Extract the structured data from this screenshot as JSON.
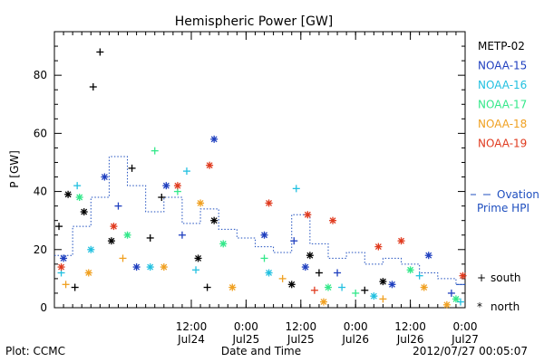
{
  "chart_data": {
    "type": "scatter",
    "title": "Hemispheric Power [GW]",
    "xlabel": "Date and Time",
    "ylabel": "P [GW]",
    "ylim": [
      0,
      95
    ],
    "xlim": [
      "2012-07-23T06:00",
      "2012-07-27T00:00"
    ],
    "yticks": [
      0,
      20,
      40,
      60,
      80
    ],
    "xticks": [
      {
        "time": "2012-07-24T12:00",
        "label1": "12:00",
        "label2": "Jul24"
      },
      {
        "time": "2012-07-25T00:00",
        "label1": "0:00",
        "label2": "Jul25"
      },
      {
        "time": "2012-07-25T12:00",
        "label1": "12:00",
        "label2": "Jul25"
      },
      {
        "time": "2012-07-26T00:00",
        "label1": "0:00",
        "label2": "Jul26"
      },
      {
        "time": "2012-07-26T12:00",
        "label1": "12:00",
        "label2": "Jul26"
      },
      {
        "time": "2012-07-27T00:00",
        "label1": "0:00",
        "label2": "Jul27"
      }
    ],
    "legend_placement": "right",
    "marker_legend": {
      "south": "south",
      "north": "north",
      "south_symbol": "+",
      "north_symbol": "*"
    },
    "ovation_label_1": "Ovation",
    "ovation_label_2": "Prime HPI",
    "ovation_color": "#1f4fbf",
    "ovation_steps": [
      [
        "2012-07-23T06:00",
        18
      ],
      [
        "2012-07-23T10:00",
        28
      ],
      [
        "2012-07-23T14:00",
        38
      ],
      [
        "2012-07-23T18:00",
        52
      ],
      [
        "2012-07-23T22:00",
        42
      ],
      [
        "2012-07-24T02:00",
        33
      ],
      [
        "2012-07-24T06:00",
        38
      ],
      [
        "2012-07-24T10:00",
        29
      ],
      [
        "2012-07-24T14:00",
        34
      ],
      [
        "2012-07-24T18:00",
        27
      ],
      [
        "2012-07-24T22:00",
        24
      ],
      [
        "2012-07-25T02:00",
        21
      ],
      [
        "2012-07-25T06:00",
        19
      ],
      [
        "2012-07-25T10:00",
        32
      ],
      [
        "2012-07-25T14:00",
        22
      ],
      [
        "2012-07-25T18:00",
        17
      ],
      [
        "2012-07-25T22:00",
        19
      ],
      [
        "2012-07-26T02:00",
        15
      ],
      [
        "2012-07-26T06:00",
        17
      ],
      [
        "2012-07-26T10:00",
        15
      ],
      [
        "2012-07-26T14:00",
        12
      ],
      [
        "2012-07-26T18:00",
        10
      ],
      [
        "2012-07-26T22:00",
        8
      ],
      [
        "2012-07-27T00:00",
        8
      ]
    ],
    "series": [
      {
        "name": "METP-02",
        "color": "#000000"
      },
      {
        "name": "NOAA-15",
        "color": "#1f3fbf"
      },
      {
        "name": "NOAA-16",
        "color": "#22c0e0"
      },
      {
        "name": "NOAA-17",
        "color": "#33e88a"
      },
      {
        "name": "NOAA-18",
        "color": "#f0a020"
      },
      {
        "name": "NOAA-19",
        "color": "#e03a1e"
      }
    ],
    "points": [
      {
        "s": 0,
        "t": "2012-07-23T07:00",
        "v": 28,
        "m": "+"
      },
      {
        "s": 0,
        "t": "2012-07-23T09:00",
        "v": 39,
        "m": "*"
      },
      {
        "s": 0,
        "t": "2012-07-23T12:30",
        "v": 33,
        "m": "*"
      },
      {
        "s": 0,
        "t": "2012-07-23T16:00",
        "v": 88,
        "m": "+"
      },
      {
        "s": 0,
        "t": "2012-07-23T14:30",
        "v": 76,
        "m": "+"
      },
      {
        "s": 0,
        "t": "2012-07-23T18:30",
        "v": 23,
        "m": "*"
      },
      {
        "s": 0,
        "t": "2012-07-23T23:00",
        "v": 48,
        "m": "+"
      },
      {
        "s": 0,
        "t": "2012-07-24T03:00",
        "v": 24,
        "m": "+"
      },
      {
        "s": 0,
        "t": "2012-07-24T05:30",
        "v": 38,
        "m": "+"
      },
      {
        "s": 0,
        "t": "2012-07-24T13:30",
        "v": 17,
        "m": "*"
      },
      {
        "s": 0,
        "t": "2012-07-24T15:30",
        "v": 7,
        "m": "+"
      },
      {
        "s": 0,
        "t": "2012-07-24T17:00",
        "v": 30,
        "m": "*"
      },
      {
        "s": 0,
        "t": "2012-07-25T10:00",
        "v": 8,
        "m": "*"
      },
      {
        "s": 0,
        "t": "2012-07-25T16:00",
        "v": 12,
        "m": "+"
      },
      {
        "s": 0,
        "t": "2012-07-25T14:00",
        "v": 18,
        "m": "*"
      },
      {
        "s": 0,
        "t": "2012-07-26T02:00",
        "v": 6,
        "m": "+"
      },
      {
        "s": 0,
        "t": "2012-07-26T06:00",
        "v": 9,
        "m": "*"
      },
      {
        "s": 0,
        "t": "2012-07-23T10:30",
        "v": 7,
        "m": "+"
      },
      {
        "s": 1,
        "t": "2012-07-23T08:00",
        "v": 17,
        "m": "*"
      },
      {
        "s": 1,
        "t": "2012-07-23T17:00",
        "v": 45,
        "m": "*"
      },
      {
        "s": 1,
        "t": "2012-07-23T20:00",
        "v": 35,
        "m": "+"
      },
      {
        "s": 1,
        "t": "2012-07-24T06:30",
        "v": 42,
        "m": "*"
      },
      {
        "s": 1,
        "t": "2012-07-24T17:00",
        "v": 58,
        "m": "*"
      },
      {
        "s": 1,
        "t": "2012-07-24T10:00",
        "v": 25,
        "m": "+"
      },
      {
        "s": 1,
        "t": "2012-07-25T04:00",
        "v": 25,
        "m": "*"
      },
      {
        "s": 1,
        "t": "2012-07-25T10:30",
        "v": 23,
        "m": "+"
      },
      {
        "s": 1,
        "t": "2012-07-25T13:00",
        "v": 14,
        "m": "*"
      },
      {
        "s": 1,
        "t": "2012-07-25T20:00",
        "v": 12,
        "m": "+"
      },
      {
        "s": 1,
        "t": "2012-07-26T08:00",
        "v": 8,
        "m": "*"
      },
      {
        "s": 1,
        "t": "2012-07-26T16:00",
        "v": 18,
        "m": "*"
      },
      {
        "s": 1,
        "t": "2012-07-26T21:00",
        "v": 5,
        "m": "+"
      },
      {
        "s": 1,
        "t": "2012-07-24T00:00",
        "v": 14,
        "m": "*"
      },
      {
        "s": 2,
        "t": "2012-07-23T07:30",
        "v": 12,
        "m": "+"
      },
      {
        "s": 2,
        "t": "2012-07-23T11:00",
        "v": 42,
        "m": "+"
      },
      {
        "s": 2,
        "t": "2012-07-23T14:00",
        "v": 20,
        "m": "*"
      },
      {
        "s": 2,
        "t": "2012-07-24T03:00",
        "v": 14,
        "m": "*"
      },
      {
        "s": 2,
        "t": "2012-07-24T11:00",
        "v": 47,
        "m": "+"
      },
      {
        "s": 2,
        "t": "2012-07-24T13:00",
        "v": 13,
        "m": "+"
      },
      {
        "s": 2,
        "t": "2012-07-25T11:00",
        "v": 41,
        "m": "+"
      },
      {
        "s": 2,
        "t": "2012-07-25T05:00",
        "v": 12,
        "m": "*"
      },
      {
        "s": 2,
        "t": "2012-07-25T21:00",
        "v": 7,
        "m": "+"
      },
      {
        "s": 2,
        "t": "2012-07-26T04:00",
        "v": 4,
        "m": "*"
      },
      {
        "s": 2,
        "t": "2012-07-26T14:00",
        "v": 11,
        "m": "+"
      },
      {
        "s": 2,
        "t": "2012-07-26T23:00",
        "v": 2,
        "m": "+"
      },
      {
        "s": 3,
        "t": "2012-07-23T11:30",
        "v": 38,
        "m": "*"
      },
      {
        "s": 3,
        "t": "2012-07-23T22:00",
        "v": 25,
        "m": "*"
      },
      {
        "s": 3,
        "t": "2012-07-24T04:00",
        "v": 54,
        "m": "+"
      },
      {
        "s": 3,
        "t": "2012-07-24T09:00",
        "v": 40,
        "m": "+"
      },
      {
        "s": 3,
        "t": "2012-07-24T19:00",
        "v": 22,
        "m": "*"
      },
      {
        "s": 3,
        "t": "2012-07-25T04:00",
        "v": 17,
        "m": "+"
      },
      {
        "s": 3,
        "t": "2012-07-25T18:00",
        "v": 7,
        "m": "*"
      },
      {
        "s": 3,
        "t": "2012-07-26T00:00",
        "v": 5,
        "m": "+"
      },
      {
        "s": 3,
        "t": "2012-07-26T12:00",
        "v": 13,
        "m": "*"
      },
      {
        "s": 3,
        "t": "2012-07-26T22:00",
        "v": 3,
        "m": "*"
      },
      {
        "s": 4,
        "t": "2012-07-23T08:30",
        "v": 8,
        "m": "+"
      },
      {
        "s": 4,
        "t": "2012-07-23T13:30",
        "v": 12,
        "m": "*"
      },
      {
        "s": 4,
        "t": "2012-07-23T21:00",
        "v": 17,
        "m": "+"
      },
      {
        "s": 4,
        "t": "2012-07-24T06:00",
        "v": 14,
        "m": "*"
      },
      {
        "s": 4,
        "t": "2012-07-24T14:00",
        "v": 36,
        "m": "*"
      },
      {
        "s": 4,
        "t": "2012-07-24T21:00",
        "v": 7,
        "m": "*"
      },
      {
        "s": 4,
        "t": "2012-07-25T08:00",
        "v": 10,
        "m": "+"
      },
      {
        "s": 4,
        "t": "2012-07-25T17:00",
        "v": 2,
        "m": "*"
      },
      {
        "s": 4,
        "t": "2012-07-26T06:00",
        "v": 3,
        "m": "+"
      },
      {
        "s": 4,
        "t": "2012-07-26T15:00",
        "v": 7,
        "m": "*"
      },
      {
        "s": 4,
        "t": "2012-07-26T20:00",
        "v": 1,
        "m": "*"
      },
      {
        "s": 5,
        "t": "2012-07-23T07:30",
        "v": 14,
        "m": "*"
      },
      {
        "s": 5,
        "t": "2012-07-23T19:00",
        "v": 28,
        "m": "*"
      },
      {
        "s": 5,
        "t": "2012-07-24T09:00",
        "v": 42,
        "m": "*"
      },
      {
        "s": 5,
        "t": "2012-07-24T16:00",
        "v": 49,
        "m": "*"
      },
      {
        "s": 5,
        "t": "2012-07-25T05:00",
        "v": 36,
        "m": "*"
      },
      {
        "s": 5,
        "t": "2012-07-25T13:30",
        "v": 32,
        "m": "*"
      },
      {
        "s": 5,
        "t": "2012-07-25T19:00",
        "v": 30,
        "m": "*"
      },
      {
        "s": 5,
        "t": "2012-07-26T05:00",
        "v": 21,
        "m": "*"
      },
      {
        "s": 5,
        "t": "2012-07-26T10:00",
        "v": 23,
        "m": "*"
      },
      {
        "s": 5,
        "t": "2012-07-26T23:30",
        "v": 11,
        "m": "*"
      },
      {
        "s": 5,
        "t": "2012-07-25T15:00",
        "v": 6,
        "m": "+"
      }
    ]
  },
  "footer": {
    "plot_credit": "Plot: CCMC",
    "timestamp": "2012/07/27 00:05:07"
  }
}
